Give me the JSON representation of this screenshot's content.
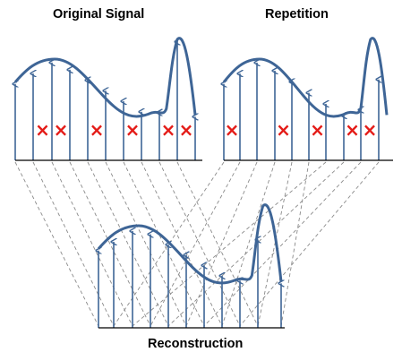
{
  "labels": {
    "original": "Original Signal",
    "repetition": "Repetition",
    "reconstruction": "Reconstruction"
  },
  "colors": {
    "signal": "#3e6596",
    "sample": "#3e6596",
    "erased_marker": "#e41b17",
    "baseline": "#000000",
    "mapping_line": "#8a8a8a"
  },
  "diagram": {
    "sample_count": 10,
    "original_erased_indices": [
      1,
      2,
      4,
      6,
      8,
      9
    ],
    "repetition_erased_indices": [
      0,
      3,
      5,
      7,
      8
    ],
    "marker_symbol": "×"
  }
}
